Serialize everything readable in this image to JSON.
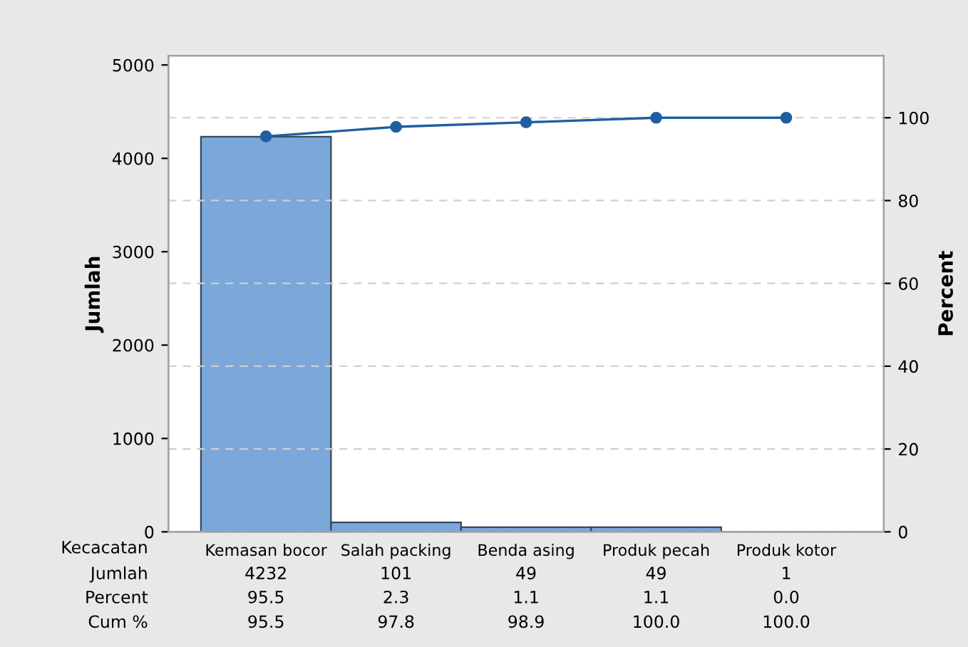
{
  "chart_data": {
    "type": "bar",
    "xlabel": "Kecacatan",
    "ylabel": "Jumlah",
    "y2label": "Percent",
    "categories": [
      "Kemasan bocor",
      "Salah packing",
      "Benda asing",
      "Produk pecah",
      "Produk kotor"
    ],
    "series": [
      {
        "color": "#7ba7d9",
        "values": [
          4232,
          101,
          49,
          49,
          1
        ]
      },
      {
        "type": "line",
        "axis": "y2",
        "color": "#1f5fa0",
        "values": [
          95.5,
          97.8,
          98.9,
          100.0,
          100.0
        ],
        "value_labels": [
          "95.5",
          "97.8",
          "98.9",
          "100.0",
          "100.0"
        ]
      }
    ],
    "annotations": [
      "Jumlah",
      "Cum %",
      "Percent",
      "95.5",
      "2.3",
      "1.1",
      "1.1",
      "0.0"
    ],
    "data_labels": true,
    "ylim": [
      0,
      5100
    ],
    "yticks": [
      0,
      1000,
      2000,
      3000,
      4000,
      5000
    ],
    "y2lim": [
      0,
      115
    ],
    "y2ticks": [
      0,
      20,
      40,
      60,
      80,
      100
    ],
    "grid": "y2",
    "marker": "circle",
    "line_style": "solid",
    "legend": false
  }
}
